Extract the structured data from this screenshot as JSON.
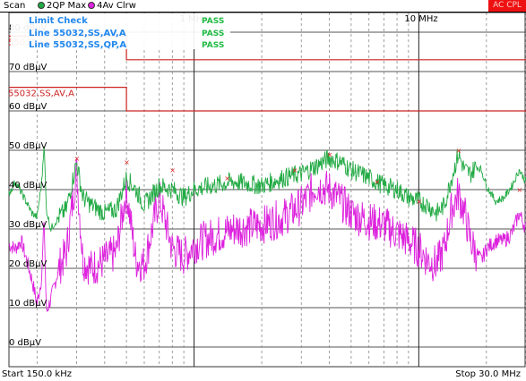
{
  "header": {
    "scan_label": "Scan",
    "series_1_label": "2QP Max",
    "series_2_label": "4Av Clrw",
    "status_badge": "AC CPL",
    "series_1_color": "#22aa44",
    "series_2_color": "#dd22dd"
  },
  "limit_check": {
    "title": "Limit Check",
    "title_value": "PASS",
    "rows": [
      {
        "label": "Line 55032,SS,AV,A",
        "result": "PASS"
      },
      {
        "label": "Line 55032,SS,QP,A",
        "result": "PASS"
      }
    ]
  },
  "footer": {
    "start_label": "Start 150.0 kHz",
    "stop_label": "Stop 30.0 MHz"
  },
  "chart_data": {
    "type": "line",
    "x_scale": "log",
    "xlim": [
      0.15,
      30.0
    ],
    "ylim": [
      -5,
      85
    ],
    "grid": true,
    "y_ticks": [
      {
        "value": 80,
        "label": "80 dBµV"
      },
      {
        "value": 70,
        "label": "70 dBµV"
      },
      {
        "value": 60,
        "label": "60 dBµV"
      },
      {
        "value": 50,
        "label": "50 dBµV"
      },
      {
        "value": 40,
        "label": "40 dBµV"
      },
      {
        "value": 30,
        "label": "30 dBµV"
      },
      {
        "value": 20,
        "label": "20 dBµV"
      },
      {
        "value": 10,
        "label": "10 dBµV"
      },
      {
        "value": 0,
        "label": "0 dBµV"
      }
    ],
    "x_ticks": [
      {
        "value": 1,
        "label": "1 MHz"
      },
      {
        "value": 10,
        "label": "10 MHz"
      }
    ],
    "limit_lines": [
      {
        "name": "55032,SS,QP,A",
        "color": "#cc2222",
        "points": [
          [
            0.15,
            79
          ],
          [
            0.5,
            79
          ],
          [
            0.5,
            73
          ],
          [
            30,
            73
          ]
        ]
      },
      {
        "name": "55032,SS,AV,A",
        "color": "#cc2222",
        "points": [
          [
            0.15,
            66
          ],
          [
            0.5,
            66
          ],
          [
            0.5,
            60
          ],
          [
            30,
            60
          ]
        ]
      }
    ],
    "series": [
      {
        "name": "2QP Max",
        "color": "#22aa44",
        "points": [
          [
            0.15,
            39
          ],
          [
            0.16,
            42
          ],
          [
            0.175,
            38
          ],
          [
            0.19,
            34
          ],
          [
            0.2,
            33
          ],
          [
            0.21,
            42
          ],
          [
            0.215,
            52
          ],
          [
            0.22,
            35
          ],
          [
            0.23,
            30
          ],
          [
            0.25,
            33
          ],
          [
            0.27,
            35
          ],
          [
            0.3,
            47
          ],
          [
            0.32,
            38
          ],
          [
            0.35,
            36
          ],
          [
            0.4,
            34
          ],
          [
            0.45,
            35
          ],
          [
            0.5,
            43
          ],
          [
            0.55,
            40
          ],
          [
            0.6,
            36
          ],
          [
            0.7,
            41
          ],
          [
            0.8,
            40
          ],
          [
            0.9,
            38
          ],
          [
            1.0,
            40
          ],
          [
            1.2,
            41
          ],
          [
            1.5,
            42
          ],
          [
            2.0,
            41
          ],
          [
            2.5,
            43
          ],
          [
            3.0,
            44
          ],
          [
            3.5,
            46
          ],
          [
            4.0,
            48
          ],
          [
            4.5,
            47
          ],
          [
            5.0,
            45
          ],
          [
            6.0,
            43
          ],
          [
            7.0,
            41
          ],
          [
            8.0,
            40
          ],
          [
            9.0,
            38
          ],
          [
            10.0,
            37
          ],
          [
            11.0,
            36
          ],
          [
            12.0,
            34
          ],
          [
            13.0,
            36
          ],
          [
            14.0,
            43
          ],
          [
            15.0,
            49
          ],
          [
            16.0,
            45
          ],
          [
            17.0,
            44
          ],
          [
            18.0,
            46
          ],
          [
            19.0,
            45
          ],
          [
            20.0,
            41
          ],
          [
            22.0,
            37
          ],
          [
            24.0,
            38
          ],
          [
            26.0,
            41
          ],
          [
            28.0,
            45
          ],
          [
            30.0,
            42
          ]
        ]
      },
      {
        "name": "4Av Clrw",
        "color": "#dd22dd",
        "points": [
          [
            0.15,
            26
          ],
          [
            0.16,
            25
          ],
          [
            0.17,
            27
          ],
          [
            0.18,
            22
          ],
          [
            0.19,
            17
          ],
          [
            0.2,
            11
          ],
          [
            0.21,
            18
          ],
          [
            0.215,
            33
          ],
          [
            0.22,
            9
          ],
          [
            0.23,
            12
          ],
          [
            0.25,
            20
          ],
          [
            0.27,
            24
          ],
          [
            0.3,
            45
          ],
          [
            0.32,
            22
          ],
          [
            0.35,
            20
          ],
          [
            0.4,
            22
          ],
          [
            0.45,
            24
          ],
          [
            0.5,
            40
          ],
          [
            0.55,
            22
          ],
          [
            0.6,
            21
          ],
          [
            0.7,
            38
          ],
          [
            0.8,
            25
          ],
          [
            0.9,
            23
          ],
          [
            1.0,
            26
          ],
          [
            1.2,
            28
          ],
          [
            1.5,
            30
          ],
          [
            2.0,
            31
          ],
          [
            2.5,
            33
          ],
          [
            3.0,
            36
          ],
          [
            3.5,
            41
          ],
          [
            4.0,
            40
          ],
          [
            4.5,
            37
          ],
          [
            5.0,
            34
          ],
          [
            6.0,
            32
          ],
          [
            7.0,
            31
          ],
          [
            8.0,
            29
          ],
          [
            9.0,
            27
          ],
          [
            10.0,
            25
          ],
          [
            11.0,
            22
          ],
          [
            12.0,
            21
          ],
          [
            13.0,
            25
          ],
          [
            14.0,
            35
          ],
          [
            15.0,
            39
          ],
          [
            16.0,
            34
          ],
          [
            17.0,
            27
          ],
          [
            18.0,
            24
          ],
          [
            19.0,
            22
          ],
          [
            20.0,
            25
          ],
          [
            22.0,
            27
          ],
          [
            24.0,
            27
          ],
          [
            26.0,
            29
          ],
          [
            28.0,
            34
          ],
          [
            30.0,
            30
          ]
        ]
      }
    ],
    "peak_markers": [
      [
        0.3,
        48
      ],
      [
        0.5,
        47
      ],
      [
        0.8,
        45
      ],
      [
        1.4,
        43
      ],
      [
        2.8,
        45
      ],
      [
        4.0,
        49
      ],
      [
        6.5,
        42
      ],
      [
        10.0,
        37
      ],
      [
        15.0,
        50
      ],
      [
        28.0,
        40
      ]
    ]
  }
}
